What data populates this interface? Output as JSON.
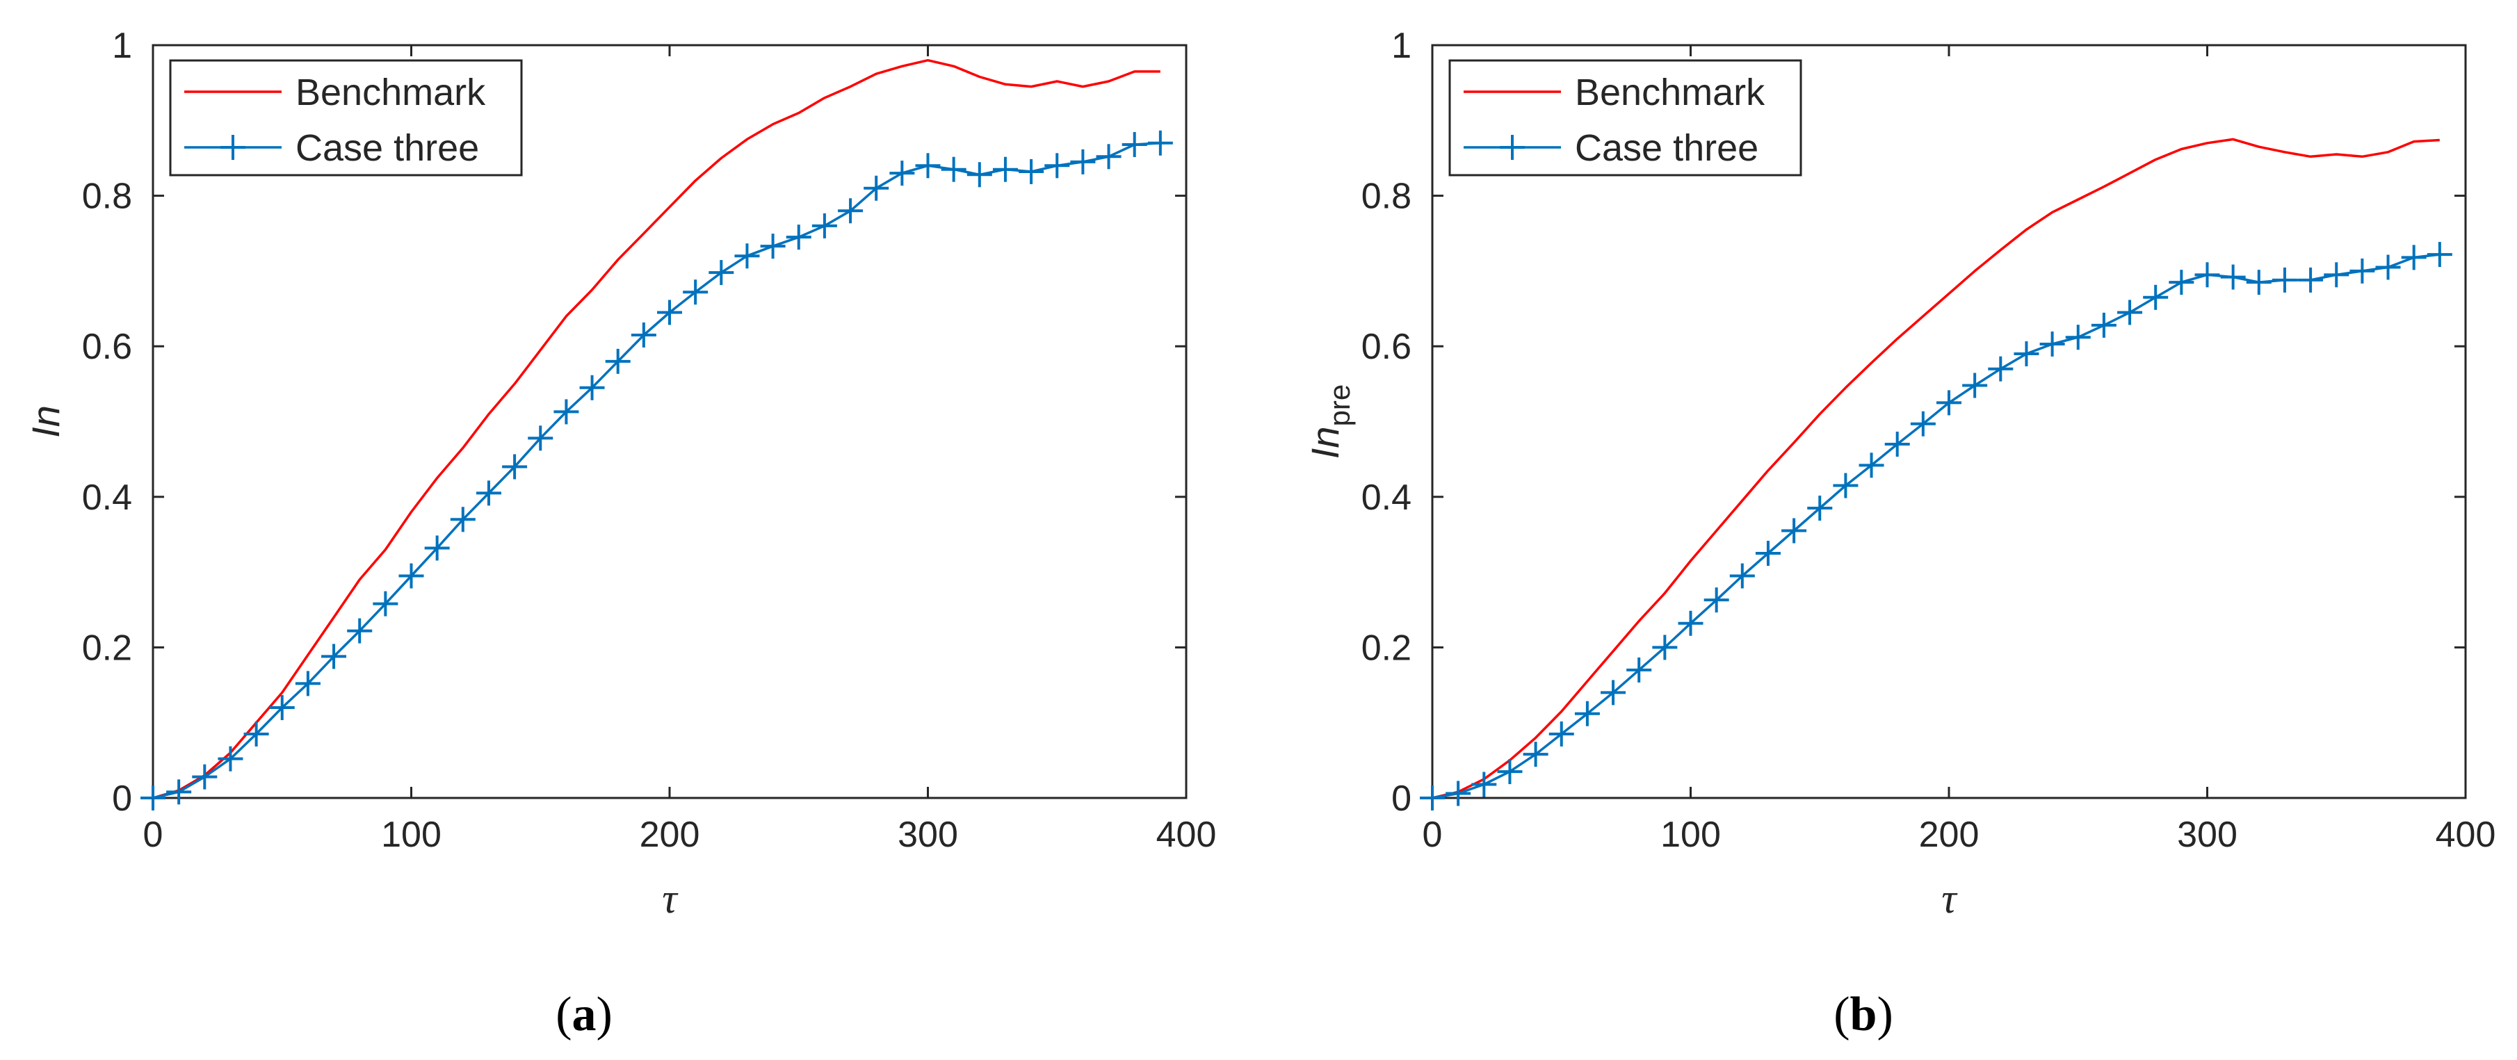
{
  "chart_data": [
    {
      "type": "line",
      "panel_label_open": "(",
      "panel_label_letter": "a",
      "panel_label_close": ")",
      "xlabel": "τ",
      "ylabel_main": "In",
      "ylabel_sub": "",
      "xlim": [
        0,
        400
      ],
      "ylim": [
        0,
        1
      ],
      "xticks": [
        0,
        100,
        200,
        300,
        400
      ],
      "yticks": [
        0,
        0.2,
        0.4,
        0.6,
        0.8,
        1
      ],
      "xtick_labels": [
        "0",
        "100",
        "200",
        "300",
        "400"
      ],
      "ytick_labels": [
        "0",
        "0.2",
        "0.4",
        "0.6",
        "0.8",
        "1"
      ],
      "legend_position": "top-left",
      "series": [
        {
          "name": "Benchmark",
          "color": "#ff0000",
          "marker": "none",
          "x": [
            0,
            10,
            20,
            30,
            40,
            50,
            60,
            70,
            80,
            90,
            100,
            110,
            120,
            130,
            140,
            150,
            160,
            170,
            180,
            190,
            200,
            210,
            220,
            230,
            240,
            250,
            260,
            270,
            280,
            290,
            300,
            310,
            320,
            330,
            340,
            350,
            360,
            370,
            380,
            390
          ],
          "y": [
            0,
            0.01,
            0.03,
            0.06,
            0.1,
            0.14,
            0.19,
            0.24,
            0.29,
            0.33,
            0.38,
            0.425,
            0.465,
            0.51,
            0.55,
            0.595,
            0.64,
            0.675,
            0.715,
            0.75,
            0.785,
            0.82,
            0.85,
            0.875,
            0.895,
            0.91,
            0.93,
            0.945,
            0.962,
            0.972,
            0.98,
            0.972,
            0.958,
            0.948,
            0.945,
            0.952,
            0.945,
            0.952,
            0.965,
            0.965
          ]
        },
        {
          "name": "Case three",
          "color": "#0072bd",
          "marker": "+",
          "x": [
            0,
            10,
            20,
            30,
            40,
            50,
            60,
            70,
            80,
            90,
            100,
            110,
            120,
            130,
            140,
            150,
            160,
            170,
            180,
            190,
            200,
            210,
            220,
            230,
            240,
            250,
            260,
            270,
            280,
            290,
            300,
            310,
            320,
            330,
            340,
            350,
            360,
            370,
            380,
            390
          ],
          "y": [
            0,
            0.008,
            0.028,
            0.052,
            0.085,
            0.12,
            0.152,
            0.188,
            0.222,
            0.258,
            0.295,
            0.332,
            0.37,
            0.405,
            0.44,
            0.478,
            0.513,
            0.545,
            0.58,
            0.615,
            0.645,
            0.672,
            0.698,
            0.72,
            0.733,
            0.745,
            0.76,
            0.78,
            0.81,
            0.83,
            0.84,
            0.835,
            0.828,
            0.835,
            0.832,
            0.84,
            0.845,
            0.852,
            0.868,
            0.87
          ]
        }
      ]
    },
    {
      "type": "line",
      "panel_label_open": "(",
      "panel_label_letter": "b",
      "panel_label_close": ")",
      "xlabel": "τ",
      "ylabel_main": "In",
      "ylabel_sub": "pre",
      "xlim": [
        0,
        400
      ],
      "ylim": [
        0,
        1
      ],
      "xticks": [
        0,
        100,
        200,
        300,
        400
      ],
      "yticks": [
        0,
        0.2,
        0.4,
        0.6,
        0.8,
        1
      ],
      "xtick_labels": [
        "0",
        "100",
        "200",
        "300",
        "400"
      ],
      "ytick_labels": [
        "0",
        "0.2",
        "0.4",
        "0.6",
        "0.8",
        "1"
      ],
      "legend_position": "top-left",
      "series": [
        {
          "name": "Benchmark",
          "color": "#ff0000",
          "marker": "none",
          "x": [
            0,
            10,
            20,
            30,
            40,
            50,
            60,
            70,
            80,
            90,
            100,
            110,
            120,
            130,
            140,
            150,
            160,
            170,
            180,
            190,
            200,
            210,
            220,
            230,
            240,
            250,
            260,
            270,
            280,
            290,
            300,
            310,
            320,
            330,
            340,
            350,
            360,
            370,
            380,
            390
          ],
          "y": [
            0,
            0.008,
            0.025,
            0.05,
            0.08,
            0.115,
            0.155,
            0.195,
            0.235,
            0.272,
            0.315,
            0.355,
            0.395,
            0.435,
            0.472,
            0.51,
            0.545,
            0.578,
            0.61,
            0.64,
            0.67,
            0.7,
            0.728,
            0.755,
            0.778,
            0.795,
            0.812,
            0.83,
            0.848,
            0.862,
            0.87,
            0.875,
            0.865,
            0.858,
            0.852,
            0.855,
            0.852,
            0.858,
            0.872,
            0.874
          ]
        },
        {
          "name": "Case three",
          "color": "#0072bd",
          "marker": "+",
          "x": [
            0,
            10,
            20,
            30,
            40,
            50,
            60,
            70,
            80,
            90,
            100,
            110,
            120,
            130,
            140,
            150,
            160,
            170,
            180,
            190,
            200,
            210,
            220,
            230,
            240,
            250,
            260,
            270,
            280,
            290,
            300,
            310,
            320,
            330,
            340,
            350,
            360,
            370,
            380,
            390
          ],
          "y": [
            0,
            0.006,
            0.018,
            0.035,
            0.058,
            0.085,
            0.112,
            0.14,
            0.17,
            0.2,
            0.232,
            0.263,
            0.295,
            0.325,
            0.355,
            0.385,
            0.415,
            0.442,
            0.47,
            0.497,
            0.525,
            0.548,
            0.57,
            0.59,
            0.603,
            0.612,
            0.628,
            0.645,
            0.665,
            0.685,
            0.695,
            0.692,
            0.685,
            0.688,
            0.688,
            0.695,
            0.7,
            0.705,
            0.718,
            0.722
          ]
        }
      ]
    }
  ]
}
